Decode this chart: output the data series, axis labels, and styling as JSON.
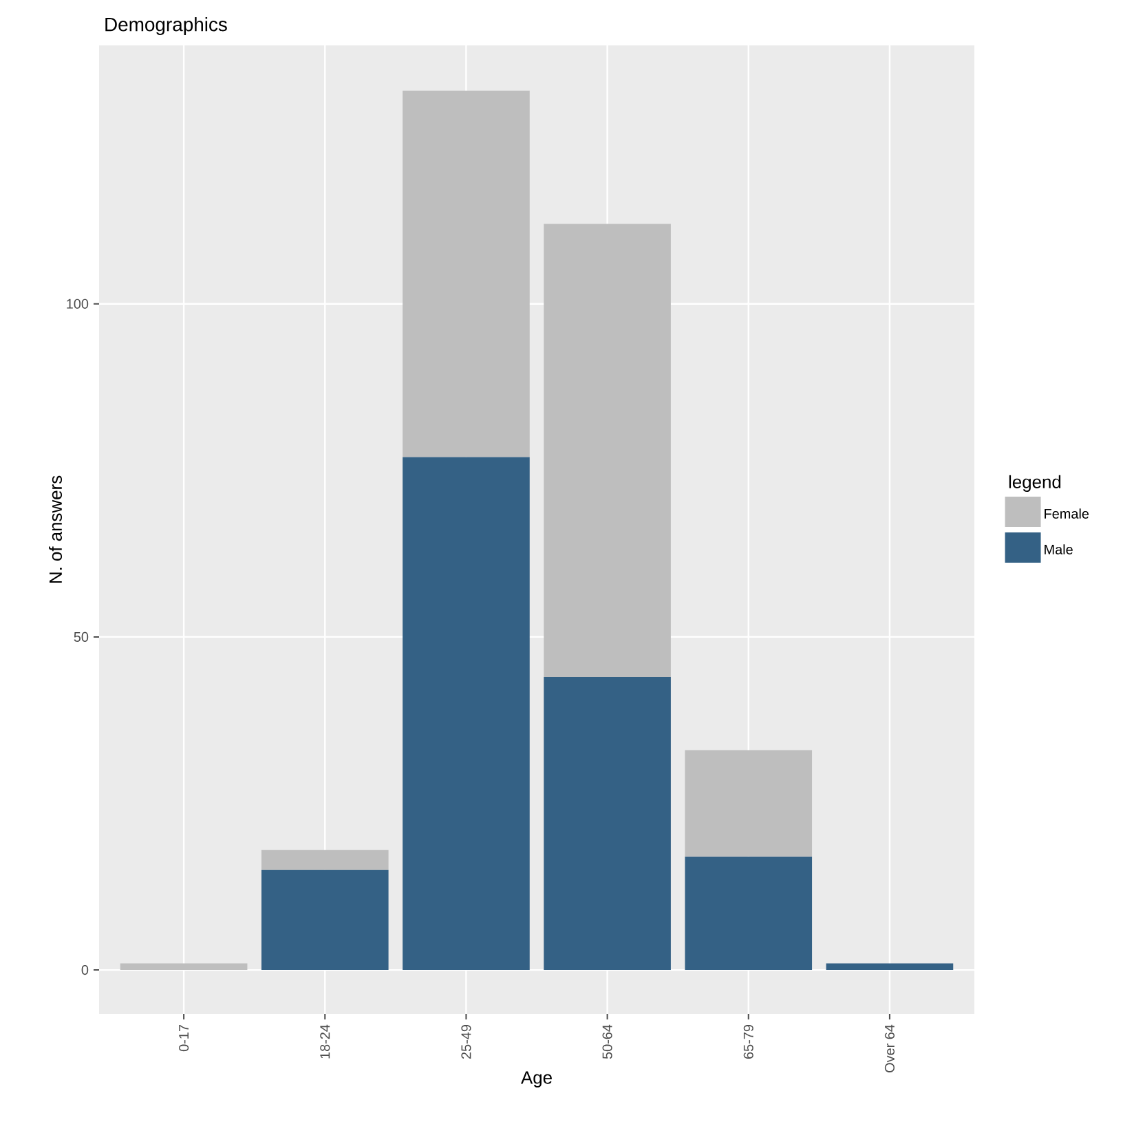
{
  "chart_data": {
    "type": "bar",
    "title": "Demographics",
    "xlabel": "Age",
    "ylabel": "N. of answers",
    "legend_title": "legend",
    "categories": [
      "0-17",
      "18-24",
      "25-49",
      "50-64",
      "65-79",
      "Over 64"
    ],
    "stacked": true,
    "series": [
      {
        "name": "Male",
        "color": "#346185",
        "values": [
          0,
          15,
          77,
          44,
          17,
          1
        ]
      },
      {
        "name": "Female",
        "color": "#bebebe",
        "values": [
          1,
          3,
          55,
          68,
          16,
          0
        ]
      }
    ],
    "ylim": [
      -6.6,
      138.8
    ],
    "yticks": [
      0,
      50,
      100
    ],
    "grid": true,
    "legend": "right"
  }
}
